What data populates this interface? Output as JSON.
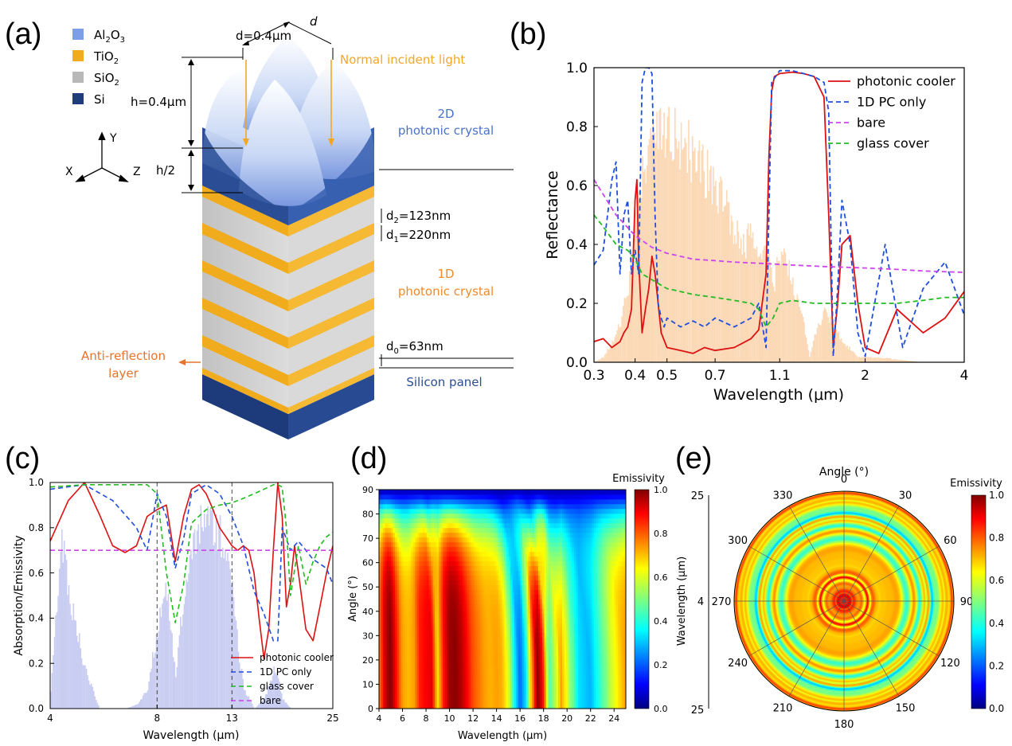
{
  "panels": [
    "(a)",
    "(b)",
    "(c)",
    "(d)",
    "(e)"
  ],
  "schematic": {
    "legend": [
      {
        "label": "Al",
        "sub": "2",
        "label2": "O",
        "sub2": "3",
        "color": "#7d9fe8"
      },
      {
        "label": "TiO",
        "sub": "2",
        "label2": "",
        "sub2": "",
        "color": "#f0ac1d"
      },
      {
        "label": "SiO",
        "sub": "2",
        "label2": "",
        "sub2": "",
        "color": "#b8b8b8"
      },
      {
        "label": "Si",
        "sub": "",
        "label2": "",
        "sub2": "",
        "color": "#1f3d7a"
      }
    ],
    "axes": {
      "y": "Y",
      "x": "X",
      "z": "Z"
    },
    "labels": {
      "d_top": "d=0.4μm",
      "d_side": "d",
      "h": "h=0.4μm",
      "h2": "h/2",
      "incident": "Normal incident light",
      "pc2d_1": "2D",
      "pc2d_2": "photonic crystal",
      "d2_pre": "d",
      "d2_sub": "2",
      "d2_post": "=123nm",
      "d1_pre": "d",
      "d1_sub": "1",
      "d1_post": "=220nm",
      "pc1d_1": "1D",
      "pc1d_2": "photonic crystal",
      "d0_pre": "d",
      "d0_sub": "0",
      "d0_post": "=63nm",
      "antireflect_1": "Anti-reflection",
      "antireflect_2": "layer",
      "silicon": "Silicon panel"
    }
  },
  "chart_data": [
    {
      "panel": "(b)",
      "type": "line",
      "xlabel": "Wavelength (μm)",
      "ylabel": "Reflectance",
      "xscale": "log",
      "xlim": [
        0.3,
        4
      ],
      "ylim": [
        0,
        1.0
      ],
      "xticks": [
        0.3,
        0.4,
        0.5,
        0.7,
        1.1,
        2,
        4
      ],
      "xtick_labels": [
        "0.3",
        "0.4",
        "0.5",
        "0.7",
        "1.1",
        "2",
        "4"
      ],
      "yticks": [
        0,
        0.2,
        0.4,
        0.6,
        0.8,
        1.0
      ],
      "ytick_labels": [
        "0.0",
        "0.2",
        "0.4",
        "0.6",
        "0.8",
        "1.0"
      ],
      "legend_position": "top-right",
      "series": [
        {
          "name": "photonic cooler",
          "color": "#dd1111",
          "dash": "",
          "x": [
            0.3,
            0.32,
            0.34,
            0.36,
            0.37,
            0.38,
            0.39,
            0.4,
            0.405,
            0.41,
            0.42,
            0.43,
            0.44,
            0.45,
            0.46,
            0.47,
            0.48,
            0.5,
            0.55,
            0.6,
            0.65,
            0.7,
            0.8,
            0.9,
            0.95,
            1.0,
            1.02,
            1.04,
            1.06,
            1.1,
            1.2,
            1.3,
            1.4,
            1.5,
            1.55,
            1.6,
            1.65,
            1.7,
            1.8,
            1.9,
            2.0,
            2.2,
            2.5,
            3.0,
            3.5,
            4.0
          ],
          "y": [
            0.07,
            0.08,
            0.05,
            0.07,
            0.1,
            0.12,
            0.18,
            0.55,
            0.62,
            0.35,
            0.1,
            0.18,
            0.25,
            0.36,
            0.3,
            0.2,
            0.1,
            0.05,
            0.04,
            0.03,
            0.05,
            0.04,
            0.05,
            0.08,
            0.11,
            0.3,
            0.7,
            0.92,
            0.97,
            0.98,
            0.985,
            0.98,
            0.97,
            0.9,
            0.5,
            0.05,
            0.2,
            0.4,
            0.43,
            0.2,
            0.05,
            0.03,
            0.18,
            0.1,
            0.15,
            0.24
          ]
        },
        {
          "name": "1D PC only",
          "color": "#1f4fdd",
          "dash": "6,4",
          "x": [
            0.3,
            0.32,
            0.34,
            0.35,
            0.36,
            0.37,
            0.38,
            0.39,
            0.4,
            0.41,
            0.42,
            0.43,
            0.44,
            0.45,
            0.46,
            0.47,
            0.48,
            0.49,
            0.5,
            0.55,
            0.6,
            0.65,
            0.7,
            0.8,
            0.9,
            0.95,
            1.0,
            1.02,
            1.04,
            1.1,
            1.2,
            1.3,
            1.4,
            1.5,
            1.55,
            1.6,
            1.65,
            1.7,
            1.8,
            1.9,
            2.0,
            2.3,
            2.6,
            3.0,
            3.5,
            4.0
          ],
          "y": [
            0.33,
            0.38,
            0.62,
            0.68,
            0.3,
            0.5,
            0.55,
            0.3,
            0.38,
            0.3,
            0.95,
            1.0,
            1.0,
            0.98,
            0.5,
            0.2,
            0.15,
            0.12,
            0.15,
            0.12,
            0.14,
            0.12,
            0.15,
            0.12,
            0.15,
            0.2,
            0.05,
            0.5,
            0.95,
            0.99,
            0.99,
            0.98,
            0.97,
            0.95,
            0.85,
            0.02,
            0.25,
            0.55,
            0.4,
            0.1,
            0.02,
            0.4,
            0.05,
            0.25,
            0.34,
            0.16
          ]
        },
        {
          "name": "bare",
          "color": "#cc44ee",
          "dash": "6,4",
          "x": [
            0.3,
            0.35,
            0.4,
            0.45,
            0.5,
            0.6,
            0.7,
            0.8,
            1.0,
            1.2,
            1.5,
            2.0,
            2.5,
            3.0,
            4.0
          ],
          "y": [
            0.62,
            0.5,
            0.43,
            0.39,
            0.37,
            0.35,
            0.345,
            0.34,
            0.335,
            0.33,
            0.325,
            0.32,
            0.315,
            0.31,
            0.305
          ]
        },
        {
          "name": "glass cover",
          "color": "#22bb22",
          "dash": "6,4",
          "x": [
            0.3,
            0.32,
            0.35,
            0.38,
            0.4,
            0.42,
            0.45,
            0.5,
            0.55,
            0.6,
            0.7,
            0.8,
            0.9,
            0.95,
            1.0,
            1.05,
            1.1,
            1.2,
            1.4,
            1.6,
            2.0,
            2.5,
            3.0,
            3.5,
            4.0
          ],
          "y": [
            0.5,
            0.46,
            0.4,
            0.38,
            0.35,
            0.3,
            0.28,
            0.25,
            0.24,
            0.23,
            0.22,
            0.21,
            0.2,
            0.18,
            0.12,
            0.15,
            0.2,
            0.21,
            0.2,
            0.2,
            0.2,
            0.2,
            0.21,
            0.22,
            0.22
          ]
        }
      ],
      "spectrum_fill": {
        "color": "#fcd9b6",
        "x": [
          0.3,
          0.32,
          0.34,
          0.36,
          0.38,
          0.4,
          0.42,
          0.44,
          0.46,
          0.48,
          0.5,
          0.55,
          0.6,
          0.65,
          0.7,
          0.75,
          0.8,
          0.85,
          0.9,
          0.95,
          1.0,
          1.05,
          1.1,
          1.15,
          1.2,
          1.3,
          1.35,
          1.4,
          1.5,
          1.6,
          1.7,
          1.8,
          1.9,
          2.0,
          2.2,
          2.5,
          3.0,
          4.0
        ],
        "y": [
          0.0,
          0.02,
          0.08,
          0.15,
          0.3,
          0.55,
          0.7,
          0.82,
          0.86,
          0.88,
          0.9,
          0.86,
          0.8,
          0.74,
          0.68,
          0.6,
          0.5,
          0.45,
          0.5,
          0.42,
          0.45,
          0.3,
          0.42,
          0.38,
          0.3,
          0.15,
          0.02,
          0.1,
          0.2,
          0.15,
          0.08,
          0.05,
          0.02,
          0.02,
          0.02,
          0.01,
          0.0,
          0.0
        ]
      }
    },
    {
      "panel": "(c)",
      "type": "line",
      "xlabel": "Wavelength (μm)",
      "ylabel": "Absorption/Emissivity",
      "xscale": "log",
      "xlim": [
        4,
        25
      ],
      "ylim": [
        0,
        1.0
      ],
      "xticks": [
        4,
        8,
        13,
        25
      ],
      "xtick_labels": [
        "4",
        "8",
        "13",
        "25"
      ],
      "yticks": [
        0,
        0.2,
        0.4,
        0.6,
        0.8,
        1.0
      ],
      "ytick_labels": [
        "0.0",
        "0.2",
        "0.4",
        "0.6",
        "0.8",
        "1.0"
      ],
      "vlines": [
        8,
        13
      ],
      "legend_position": "bottom-right",
      "series": [
        {
          "name": "photonic cooler",
          "color": "#dd1111",
          "dash": "",
          "x": [
            4,
            4.5,
            5,
            5.5,
            6,
            6.5,
            7,
            7.5,
            8,
            8.5,
            9,
            9.5,
            10,
            10.5,
            11,
            11.5,
            12,
            12.5,
            13,
            13.5,
            14,
            14.5,
            15,
            15.5,
            16,
            16.5,
            17,
            17.5,
            18,
            18.5,
            19,
            19.5,
            20,
            21,
            22,
            23,
            24,
            25
          ],
          "y": [
            0.74,
            0.92,
            1.0,
            0.86,
            0.72,
            0.69,
            0.72,
            0.85,
            0.88,
            0.9,
            0.65,
            0.85,
            0.97,
            0.99,
            0.95,
            0.88,
            0.8,
            0.76,
            0.72,
            0.7,
            0.72,
            0.7,
            0.6,
            0.4,
            0.22,
            0.35,
            0.7,
            1.0,
            0.85,
            0.45,
            0.55,
            0.72,
            0.6,
            0.35,
            0.3,
            0.45,
            0.6,
            0.72
          ]
        },
        {
          "name": "1D PC only",
          "color": "#1f4fdd",
          "dash": "6,4",
          "x": [
            4,
            5,
            6,
            7,
            7.5,
            8,
            8.5,
            9,
            9.5,
            10,
            11,
            12,
            13,
            14,
            15,
            16,
            17,
            17.5,
            18,
            18.5,
            19,
            20,
            21,
            22,
            23,
            24,
            25
          ],
          "y": [
            0.97,
            0.99,
            0.92,
            0.8,
            0.7,
            0.95,
            0.85,
            0.62,
            0.75,
            0.95,
            0.99,
            0.95,
            0.85,
            0.72,
            0.52,
            0.42,
            0.3,
            0.3,
            0.8,
            0.75,
            0.7,
            0.74,
            0.7,
            0.66,
            0.64,
            0.62,
            0.55
          ]
        },
        {
          "name": "glass cover",
          "color": "#22bb22",
          "dash": "6,4",
          "x": [
            4,
            5,
            6,
            7,
            7.5,
            8,
            8.5,
            9,
            9.5,
            10,
            11,
            12,
            13,
            14,
            15,
            16,
            17,
            17.5,
            18,
            18.5,
            19,
            20,
            21,
            22,
            23,
            24,
            25
          ],
          "y": [
            0.98,
            0.99,
            0.99,
            0.99,
            0.99,
            0.95,
            0.6,
            0.38,
            0.55,
            0.82,
            0.88,
            0.9,
            0.91,
            0.93,
            0.95,
            0.97,
            0.99,
            0.99,
            0.98,
            0.8,
            0.5,
            0.72,
            0.55,
            0.65,
            0.72,
            0.76,
            0.78
          ]
        },
        {
          "name": "bare",
          "color": "#cc44ee",
          "dash": "6,4",
          "x": [
            4,
            25
          ],
          "y": [
            0.7,
            0.7
          ]
        }
      ],
      "spectrum_fill": {
        "color": "#c9cdf2",
        "x": [
          4,
          4.3,
          4.6,
          5,
          5.5,
          6,
          6.5,
          7,
          7.5,
          8,
          8.5,
          9,
          9.5,
          10,
          10.5,
          11,
          11.5,
          12,
          12.5,
          13,
          13.5,
          14,
          15,
          16,
          16.5,
          17,
          17.5,
          18,
          19,
          20,
          25
        ],
        "y": [
          0.1,
          0.85,
          0.5,
          0.2,
          0.0,
          0.0,
          0.0,
          0.02,
          0.1,
          0.4,
          0.6,
          0.15,
          0.6,
          0.85,
          0.9,
          0.95,
          0.95,
          0.9,
          0.85,
          0.6,
          0.3,
          0.1,
          0.0,
          0.05,
          0.12,
          0.2,
          0.15,
          0.05,
          0.0,
          0.0,
          0.0
        ]
      }
    },
    {
      "panel": "(d)",
      "type": "heatmap",
      "xlabel": "Wavelength (μm)",
      "ylabel": "Angle (°)",
      "xlim": [
        4,
        25
      ],
      "ylim": [
        0,
        90
      ],
      "xticks": [
        4,
        6,
        8,
        10,
        12,
        14,
        16,
        18,
        20,
        22,
        24
      ],
      "xtick_labels": [
        "4",
        "6",
        "8",
        "10",
        "12",
        "14",
        "16",
        "18",
        "20",
        "22",
        "24"
      ],
      "yticks": [
        0,
        10,
        20,
        30,
        40,
        50,
        60,
        70,
        80,
        90
      ],
      "ytick_labels": [
        "0",
        "10",
        "20",
        "30",
        "40",
        "50",
        "60",
        "70",
        "80",
        "90"
      ],
      "colorbar_label": "Emissivity",
      "colorbar_ticks": [
        "0.0",
        "0.2",
        "0.4",
        "0.6",
        "0.8",
        "1.0"
      ],
      "emissivity_vs_wavelength": {
        "x": [
          4,
          4.5,
          5,
          5.5,
          6,
          6.5,
          7,
          7.5,
          8,
          8.5,
          9,
          9.5,
          10,
          10.5,
          11,
          11.5,
          12,
          12.5,
          13,
          13.5,
          14,
          14.5,
          15,
          15.5,
          16,
          16.5,
          17,
          17.5,
          18,
          18.5,
          19,
          19.5,
          20,
          21,
          22,
          23,
          24,
          25
        ],
        "y": [
          0.74,
          0.92,
          1.0,
          0.86,
          0.72,
          0.69,
          0.72,
          0.85,
          0.88,
          0.9,
          0.65,
          0.85,
          0.97,
          0.99,
          0.95,
          0.88,
          0.8,
          0.76,
          0.72,
          0.7,
          0.72,
          0.7,
          0.6,
          0.4,
          0.22,
          0.35,
          0.7,
          1.0,
          0.85,
          0.45,
          0.55,
          0.72,
          0.6,
          0.35,
          0.3,
          0.45,
          0.6,
          0.72
        ]
      }
    },
    {
      "panel": "(e)",
      "type": "heatmap",
      "title": "Angle (°)",
      "ylabel": "Wavelength (μm)",
      "angle_labels": [
        "0",
        "30",
        "60",
        "90",
        "120",
        "150",
        "180",
        "210",
        "240",
        "270",
        "300",
        "330"
      ],
      "radial_labels": [
        "25",
        "4",
        "25"
      ],
      "colorbar_label": "Emissivity",
      "colorbar_ticks": [
        "0.0",
        "0.2",
        "0.4",
        "0.6",
        "0.8",
        "1.0"
      ]
    }
  ]
}
